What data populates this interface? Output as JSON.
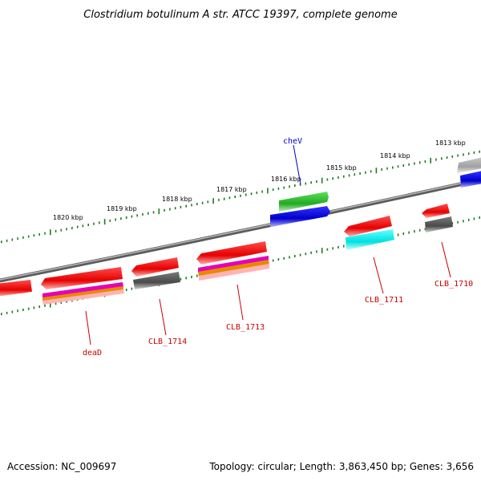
{
  "title": "Clostridium botulinum A str. ATCC 19397, complete genome",
  "footer": {
    "accession": "Accession: NC_009697",
    "summary": "Topology: circular; Length: 3,863,450 bp; Genes: 3,656"
  },
  "colors": {
    "backbone": "#808080",
    "tick": "#1f7a1f",
    "forward_gene": "#e60000",
    "reverse_gene": "#e60000",
    "cog_gray": "#5a5a5a",
    "cog_light_gray": "#a0a0a0",
    "cog_green": "#2ebd2e",
    "cog_blue": "#0000e6",
    "cog_cyan": "#00e6e6",
    "cog_magenta": "#e600b8",
    "cog_orange": "#e68a00",
    "label_red": "#cc0000",
    "label_blue": "#0000cc"
  },
  "kbp_labels": [
    "1820 kbp",
    "1819 kbp",
    "1818 kbp",
    "1817 kbp",
    "1816 kbp",
    "1815 kbp",
    "1814 kbp",
    "1813 kbp"
  ],
  "gene_labels": [
    {
      "text": "deaD",
      "color": "red"
    },
    {
      "text": "CLB_1714",
      "color": "red"
    },
    {
      "text": "CLB_1713",
      "color": "red"
    },
    {
      "text": "cheV",
      "color": "blue"
    },
    {
      "text": "CLB_1711",
      "color": "red"
    },
    {
      "text": "CLB_1710",
      "color": "red"
    }
  ]
}
